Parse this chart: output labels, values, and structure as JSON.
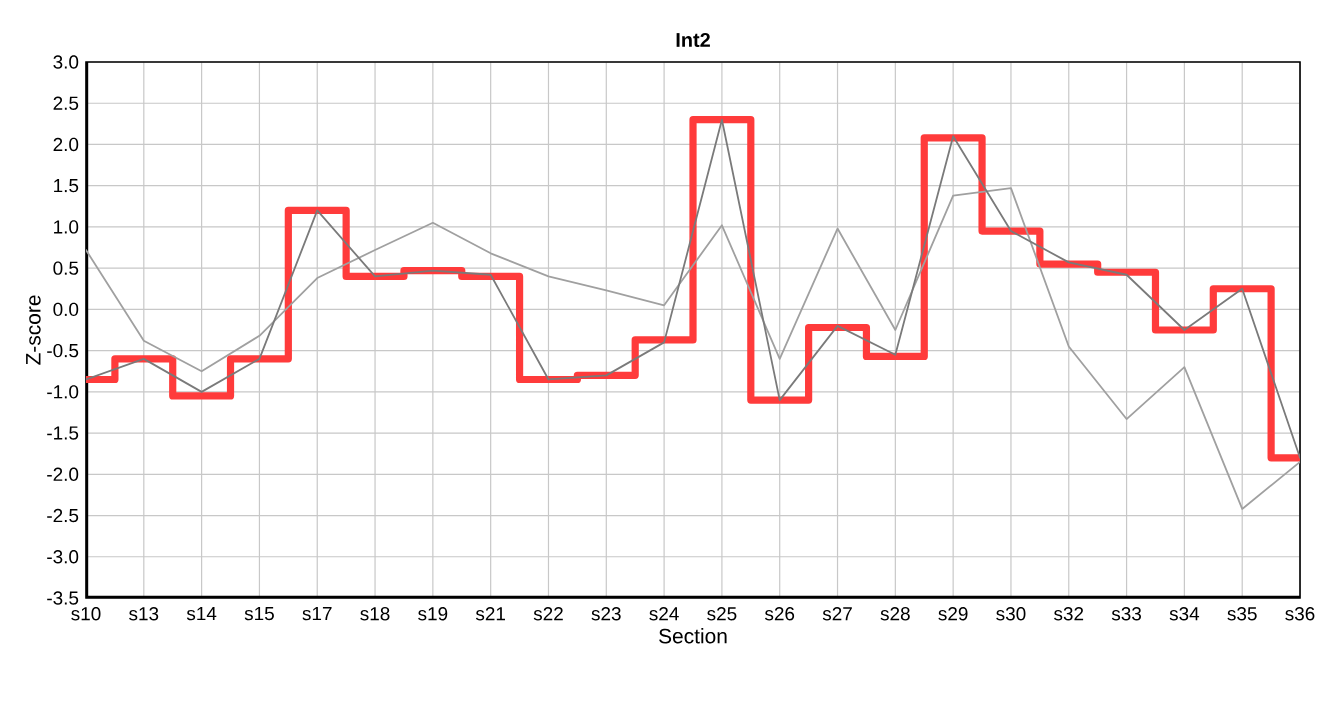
{
  "chart_data": {
    "type": "step",
    "title": "Int2",
    "xlabel": "Section",
    "ylabel": "Z-score",
    "categories": [
      "s10",
      "s13",
      "s14",
      "s15",
      "s17",
      "s18",
      "s19",
      "s21",
      "s22",
      "s23",
      "s24",
      "s25",
      "s26",
      "s27",
      "s28",
      "s29",
      "s30",
      "s32",
      "s33",
      "s34",
      "s35",
      "s36"
    ],
    "ylim": [
      -3.5,
      3.0
    ],
    "yticks": [
      {
        "value": -3.5,
        "label": "-3.5"
      },
      {
        "value": -3.0,
        "label": "-3.0"
      },
      {
        "value": -2.5,
        "label": "-2.5"
      },
      {
        "value": -2.0,
        "label": "-2.0"
      },
      {
        "value": -1.5,
        "label": "-1.5"
      },
      {
        "value": -1.0,
        "label": "-1.0"
      },
      {
        "value": -0.5,
        "label": "-0.5"
      },
      {
        "value": 0.0,
        "label": "0.0"
      },
      {
        "value": 0.5,
        "label": "0.5"
      },
      {
        "value": 1.0,
        "label": "1.0"
      },
      {
        "value": 1.5,
        "label": "1.5"
      },
      {
        "value": 2.0,
        "label": "2.0"
      },
      {
        "value": 2.5,
        "label": "2.5"
      },
      {
        "value": 3.0,
        "label": "3.0"
      }
    ],
    "grid": true,
    "legend": false,
    "marker": "none",
    "line_style": "solid",
    "series": [
      {
        "color": "#ff3b3b",
        "values": [
          -0.85,
          -0.6,
          -1.05,
          -0.6,
          1.2,
          0.4,
          0.47,
          0.4,
          -0.85,
          -0.8,
          -0.37,
          2.3,
          -1.1,
          -0.22,
          -0.57,
          2.08,
          0.95,
          0.55,
          0.45,
          -0.25,
          0.25,
          -1.8
        ]
      },
      {
        "type": "line",
        "color": "#a0a0a0",
        "values": [
          0.72,
          -0.38,
          -0.75,
          -0.32,
          0.38,
          0.72,
          1.05,
          0.68,
          0.4,
          0.23,
          0.05,
          1.02,
          -0.6,
          0.98,
          -0.25,
          1.38,
          1.47,
          -0.45,
          -1.33,
          -0.7,
          -2.42,
          -1.85
        ]
      },
      {
        "type": "line",
        "color": "#7a7a7a",
        "values": [
          -0.85,
          -0.6,
          -1.0,
          -0.6,
          1.2,
          0.4,
          0.47,
          0.42,
          -0.85,
          -0.8,
          -0.4,
          2.3,
          -1.1,
          -0.2,
          -0.55,
          2.1,
          0.95,
          0.57,
          0.42,
          -0.25,
          0.25,
          -1.8
        ]
      }
    ]
  }
}
